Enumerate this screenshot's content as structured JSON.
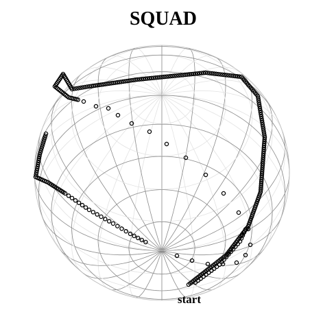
{
  "header": {
    "title": "SQUAD"
  },
  "annotations": {
    "start": "start"
  }
}
